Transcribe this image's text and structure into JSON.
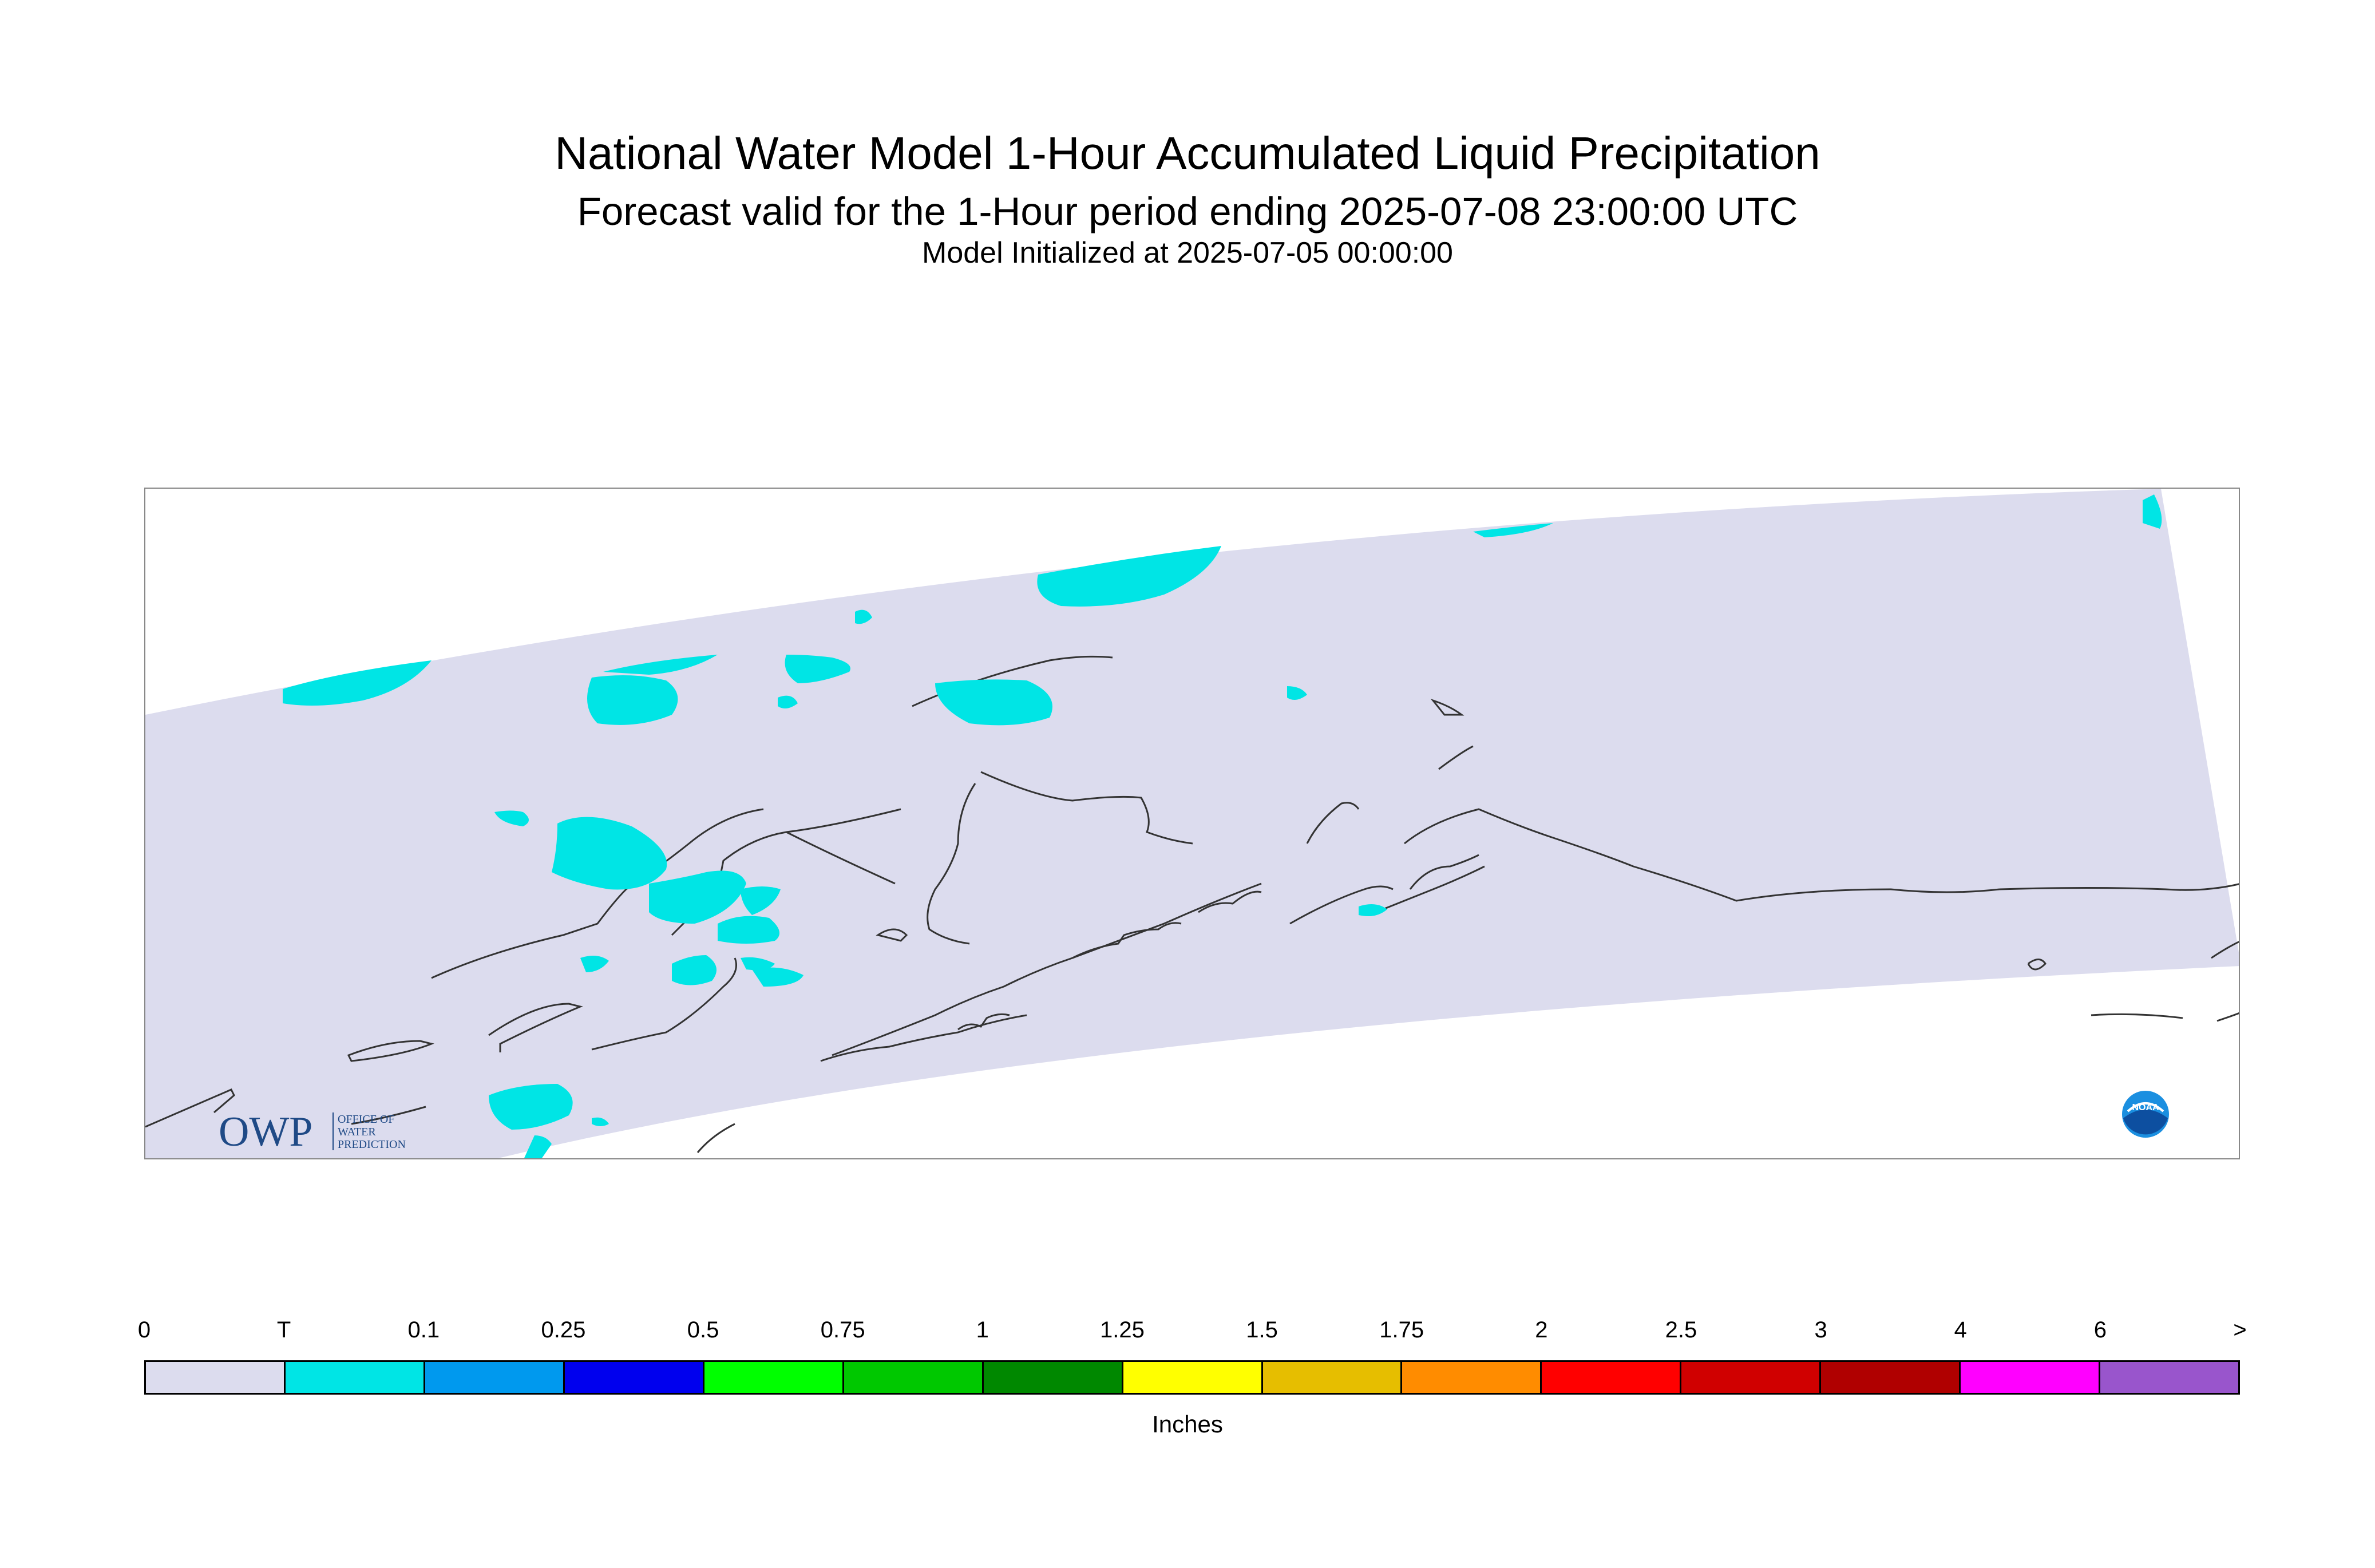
{
  "header": {
    "title": "National Water Model 1-Hour Accumulated Liquid Precipitation",
    "subtitle": "Forecast valid for the 1-Hour period ending 2025-07-08 23:00:00 UTC",
    "init": "Model Initialized at 2025-07-05 00:00:00"
  },
  "map": {
    "domain_color": "#dcdcee",
    "precip_color": "#00e5e5",
    "coastline_color": "#333333"
  },
  "logos": {
    "owp_text": "OWP",
    "owp_line1": "OFFICE OF",
    "owp_line2": "WATER",
    "owp_line3": "PREDICTION",
    "noaa_text": "NOAA"
  },
  "legend": {
    "ticks": [
      "0",
      "T",
      "0.1",
      "0.25",
      "0.5",
      "0.75",
      "1",
      "1.25",
      "1.5",
      "1.75",
      "2",
      "2.5",
      "3",
      "4",
      "6",
      ">"
    ],
    "colors": [
      "#dcdcee",
      "#00e5e5",
      "#0099ee",
      "#0000ee",
      "#00ff00",
      "#00c800",
      "#008800",
      "#ffff00",
      "#e6be00",
      "#ff8c00",
      "#ff0000",
      "#d00000",
      "#b00000",
      "#ff00ff",
      "#9955cc"
    ],
    "units": "Inches"
  }
}
